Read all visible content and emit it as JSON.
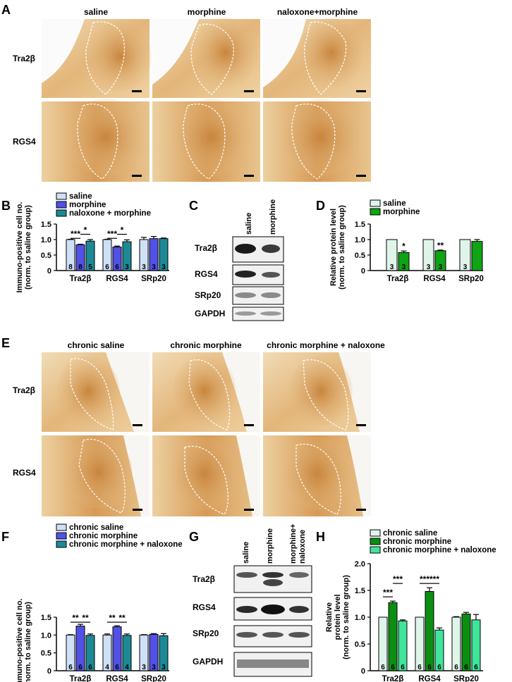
{
  "panels": {
    "A": {
      "letter": "A",
      "columns": [
        "saline",
        "morphine",
        "naloxone+morphine"
      ],
      "rows": [
        "Tra2β",
        "RGS4"
      ]
    },
    "E": {
      "letter": "E",
      "columns": [
        "chronic saline",
        "chronic morphine",
        "chronic morphine + naloxone"
      ],
      "rows": [
        "Tra2β",
        "RGS4"
      ]
    },
    "C": {
      "letter": "C",
      "lanes": [
        "saline",
        "morphine"
      ],
      "bands": [
        "Tra2β",
        "RGS4",
        "SRp20",
        "GAPDH"
      ]
    },
    "G": {
      "letter": "G",
      "lanes": [
        "saline",
        "morphine",
        "morphine+",
        "naloxone"
      ],
      "bands": [
        "Tra2β",
        "RGS4",
        "SRp20",
        "GAPDH"
      ]
    }
  },
  "chart_data": [
    {
      "panel": "B",
      "type": "bar",
      "ylabel1": "Immuno-positive cell no.",
      "ylabel2": "(norm. to saline group)",
      "ylim": [
        0,
        1.5
      ],
      "yticks": [
        "0",
        "0.5",
        "1.0",
        "1.5"
      ],
      "categories": [
        "Tra2β",
        "RGS4",
        "SRp20"
      ],
      "series": [
        {
          "name": "saline",
          "color": "#cfe0f7",
          "values": [
            1.0,
            1.0,
            1.0
          ],
          "err": [
            0.01,
            0.01,
            0.07
          ],
          "n": [
            "8",
            "6",
            "3"
          ]
        },
        {
          "name": "morphine",
          "color": "#5151e8",
          "values": [
            0.83,
            0.76,
            1.03
          ],
          "err": [
            0.02,
            0.03,
            0.07
          ],
          "n": [
            "8",
            "6",
            "3"
          ]
        },
        {
          "name": "naloxone + morphine",
          "color": "#1b8a96",
          "values": [
            0.95,
            0.93,
            1.03
          ],
          "err": [
            0.05,
            0.06,
            0.02
          ],
          "n": [
            "5",
            "3",
            "3"
          ]
        }
      ],
      "sig": [
        {
          "label": "***",
          "cat": 0,
          "from": 0,
          "to": 1,
          "y": 1.04
        },
        {
          "label": "*",
          "cat": 0,
          "from": 1,
          "to": 2,
          "y": 1.17
        },
        {
          "label": "***",
          "cat": 1,
          "from": 0,
          "to": 1,
          "y": 1.04
        },
        {
          "label": "*",
          "cat": 1,
          "from": 1,
          "to": 2,
          "y": 1.17
        }
      ],
      "star_marks": []
    },
    {
      "panel": "D",
      "type": "bar",
      "ylabel1": "Relative protein level",
      "ylabel2": "(norm. to saline group)",
      "ylim": [
        0,
        1.5
      ],
      "yticks": [
        "0",
        "0.5",
        "1.0",
        "1.5"
      ],
      "categories": [
        "Tra2β",
        "RGS4",
        "SRp20"
      ],
      "series": [
        {
          "name": "saline",
          "color": "#dff5ea",
          "values": [
            1.0,
            1.0,
            1.0
          ],
          "err": [
            0,
            0,
            0
          ],
          "n": [
            "3",
            "3",
            "3"
          ]
        },
        {
          "name": "morphine",
          "color": "#0ea414",
          "values": [
            0.58,
            0.64,
            0.94
          ],
          "err": [
            0.05,
            0.02,
            0.06
          ],
          "n": [
            "3",
            "3",
            ""
          ]
        }
      ],
      "sig": [],
      "star_marks": [
        {
          "label": "*",
          "cat": 0,
          "series": 1,
          "y": 0.69
        },
        {
          "label": "**",
          "cat": 1,
          "series": 1,
          "y": 0.72
        }
      ]
    },
    {
      "panel": "F",
      "type": "bar",
      "ylabel1": "Immuno-positive cell no.",
      "ylabel2": "(norm. to saline group)",
      "ylim": [
        0,
        1.5
      ],
      "yticks": [
        "0",
        "0.5",
        "1.0",
        "1.5"
      ],
      "categories": [
        "Tra2β",
        "RGS4",
        "SRp20"
      ],
      "series": [
        {
          "name": "chronic saline",
          "color": "#cfe0f7",
          "values": [
            1.0,
            1.0,
            1.0
          ],
          "err": [
            0.01,
            0.03,
            0.01
          ],
          "n": [
            "6",
            "4",
            "3"
          ]
        },
        {
          "name": "chronic morphine",
          "color": "#5151e8",
          "values": [
            1.25,
            1.23,
            1.02
          ],
          "err": [
            0.05,
            0.03,
            0.02
          ],
          "n": [
            "6",
            "6",
            "3"
          ]
        },
        {
          "name": "chronic morphine + naloxone",
          "color": "#1b8a96",
          "values": [
            0.99,
            0.99,
            0.98
          ],
          "err": [
            0.04,
            0.04,
            0.06
          ],
          "n": [
            "6",
            "4",
            "3"
          ]
        }
      ],
      "sig": [
        {
          "label": "**",
          "cat": 0,
          "from": 0,
          "to": 1,
          "y": 1.36
        },
        {
          "label": "**",
          "cat": 0,
          "from": 1,
          "to": 2,
          "y": 1.36
        },
        {
          "label": "**",
          "cat": 1,
          "from": 0,
          "to": 1,
          "y": 1.36
        },
        {
          "label": "**",
          "cat": 1,
          "from": 1,
          "to": 2,
          "y": 1.36
        }
      ],
      "star_marks": []
    },
    {
      "panel": "H",
      "type": "bar",
      "ylabel1": "Relative",
      "ylabel2": "protein level",
      "ylabel3": "(norm. to saline group)",
      "ylim": [
        0,
        2.0
      ],
      "yticks": [
        "0",
        "0.5",
        "1.0",
        "1.5",
        "2.0"
      ],
      "categories": [
        "Tra2β",
        "RGS4",
        "SRp20"
      ],
      "series": [
        {
          "name": "chronic saline",
          "color": "#dff5ea",
          "values": [
            1.0,
            1.0,
            1.0
          ],
          "err": [
            0,
            0,
            0.01
          ],
          "n": [
            "6",
            "6",
            "6"
          ]
        },
        {
          "name": "chronic morphine",
          "color": "#0b8f12",
          "values": [
            1.27,
            1.48,
            1.06
          ],
          "err": [
            0.03,
            0.07,
            0.03
          ],
          "n": [
            "6",
            "6",
            "6"
          ]
        },
        {
          "name": "chronic morphine + naloxone",
          "color": "#3fe59a",
          "values": [
            0.93,
            0.76,
            0.95
          ],
          "err": [
            0.02,
            0.04,
            0.1
          ],
          "n": [
            "6",
            "6",
            "6"
          ]
        }
      ],
      "sig": [
        {
          "label": "***",
          "cat": 0,
          "from": 0,
          "to": 1,
          "y": 1.38
        },
        {
          "label": "***",
          "cat": 0,
          "from": 1,
          "to": 2,
          "y": 1.63
        },
        {
          "label": "***",
          "cat": 1,
          "from": 0,
          "to": 1,
          "y": 1.63
        },
        {
          "label": "***",
          "cat": 1,
          "from": 1,
          "to": 2,
          "y": 1.63
        }
      ],
      "star_marks": []
    }
  ]
}
